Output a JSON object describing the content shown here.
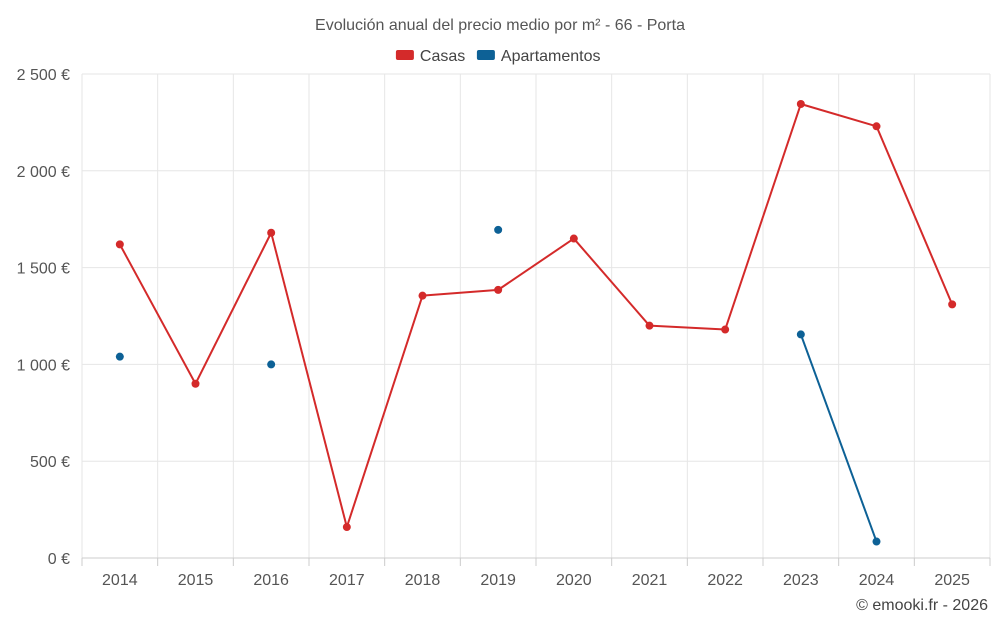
{
  "chart_data": {
    "type": "line",
    "title": "Evolución anual del precio medio por m² - 66 - Porta",
    "categories": [
      "2014",
      "2015",
      "2016",
      "2017",
      "2018",
      "2019",
      "2020",
      "2021",
      "2022",
      "2023",
      "2024",
      "2025"
    ],
    "ylim": [
      0,
      2500
    ],
    "yticks": [
      0,
      500,
      1000,
      1500,
      2000,
      2500
    ],
    "ytick_labels": [
      "0 €",
      "500 €",
      "1 000 €",
      "1 500 €",
      "2 000 €",
      "2 500 €"
    ],
    "grid": true,
    "legend_position": "top-center",
    "series": [
      {
        "name": "Casas",
        "color": "#d42a2a",
        "values": [
          1620,
          900,
          1680,
          160,
          1355,
          1385,
          1650,
          1200,
          1180,
          2345,
          2230,
          1310
        ]
      },
      {
        "name": "Apartamentos",
        "color": "#0d6196",
        "values": [
          1040,
          null,
          1000,
          null,
          null,
          1695,
          null,
          null,
          null,
          1155,
          85,
          null
        ]
      }
    ]
  },
  "credit": "© emooki.fr - 2026"
}
